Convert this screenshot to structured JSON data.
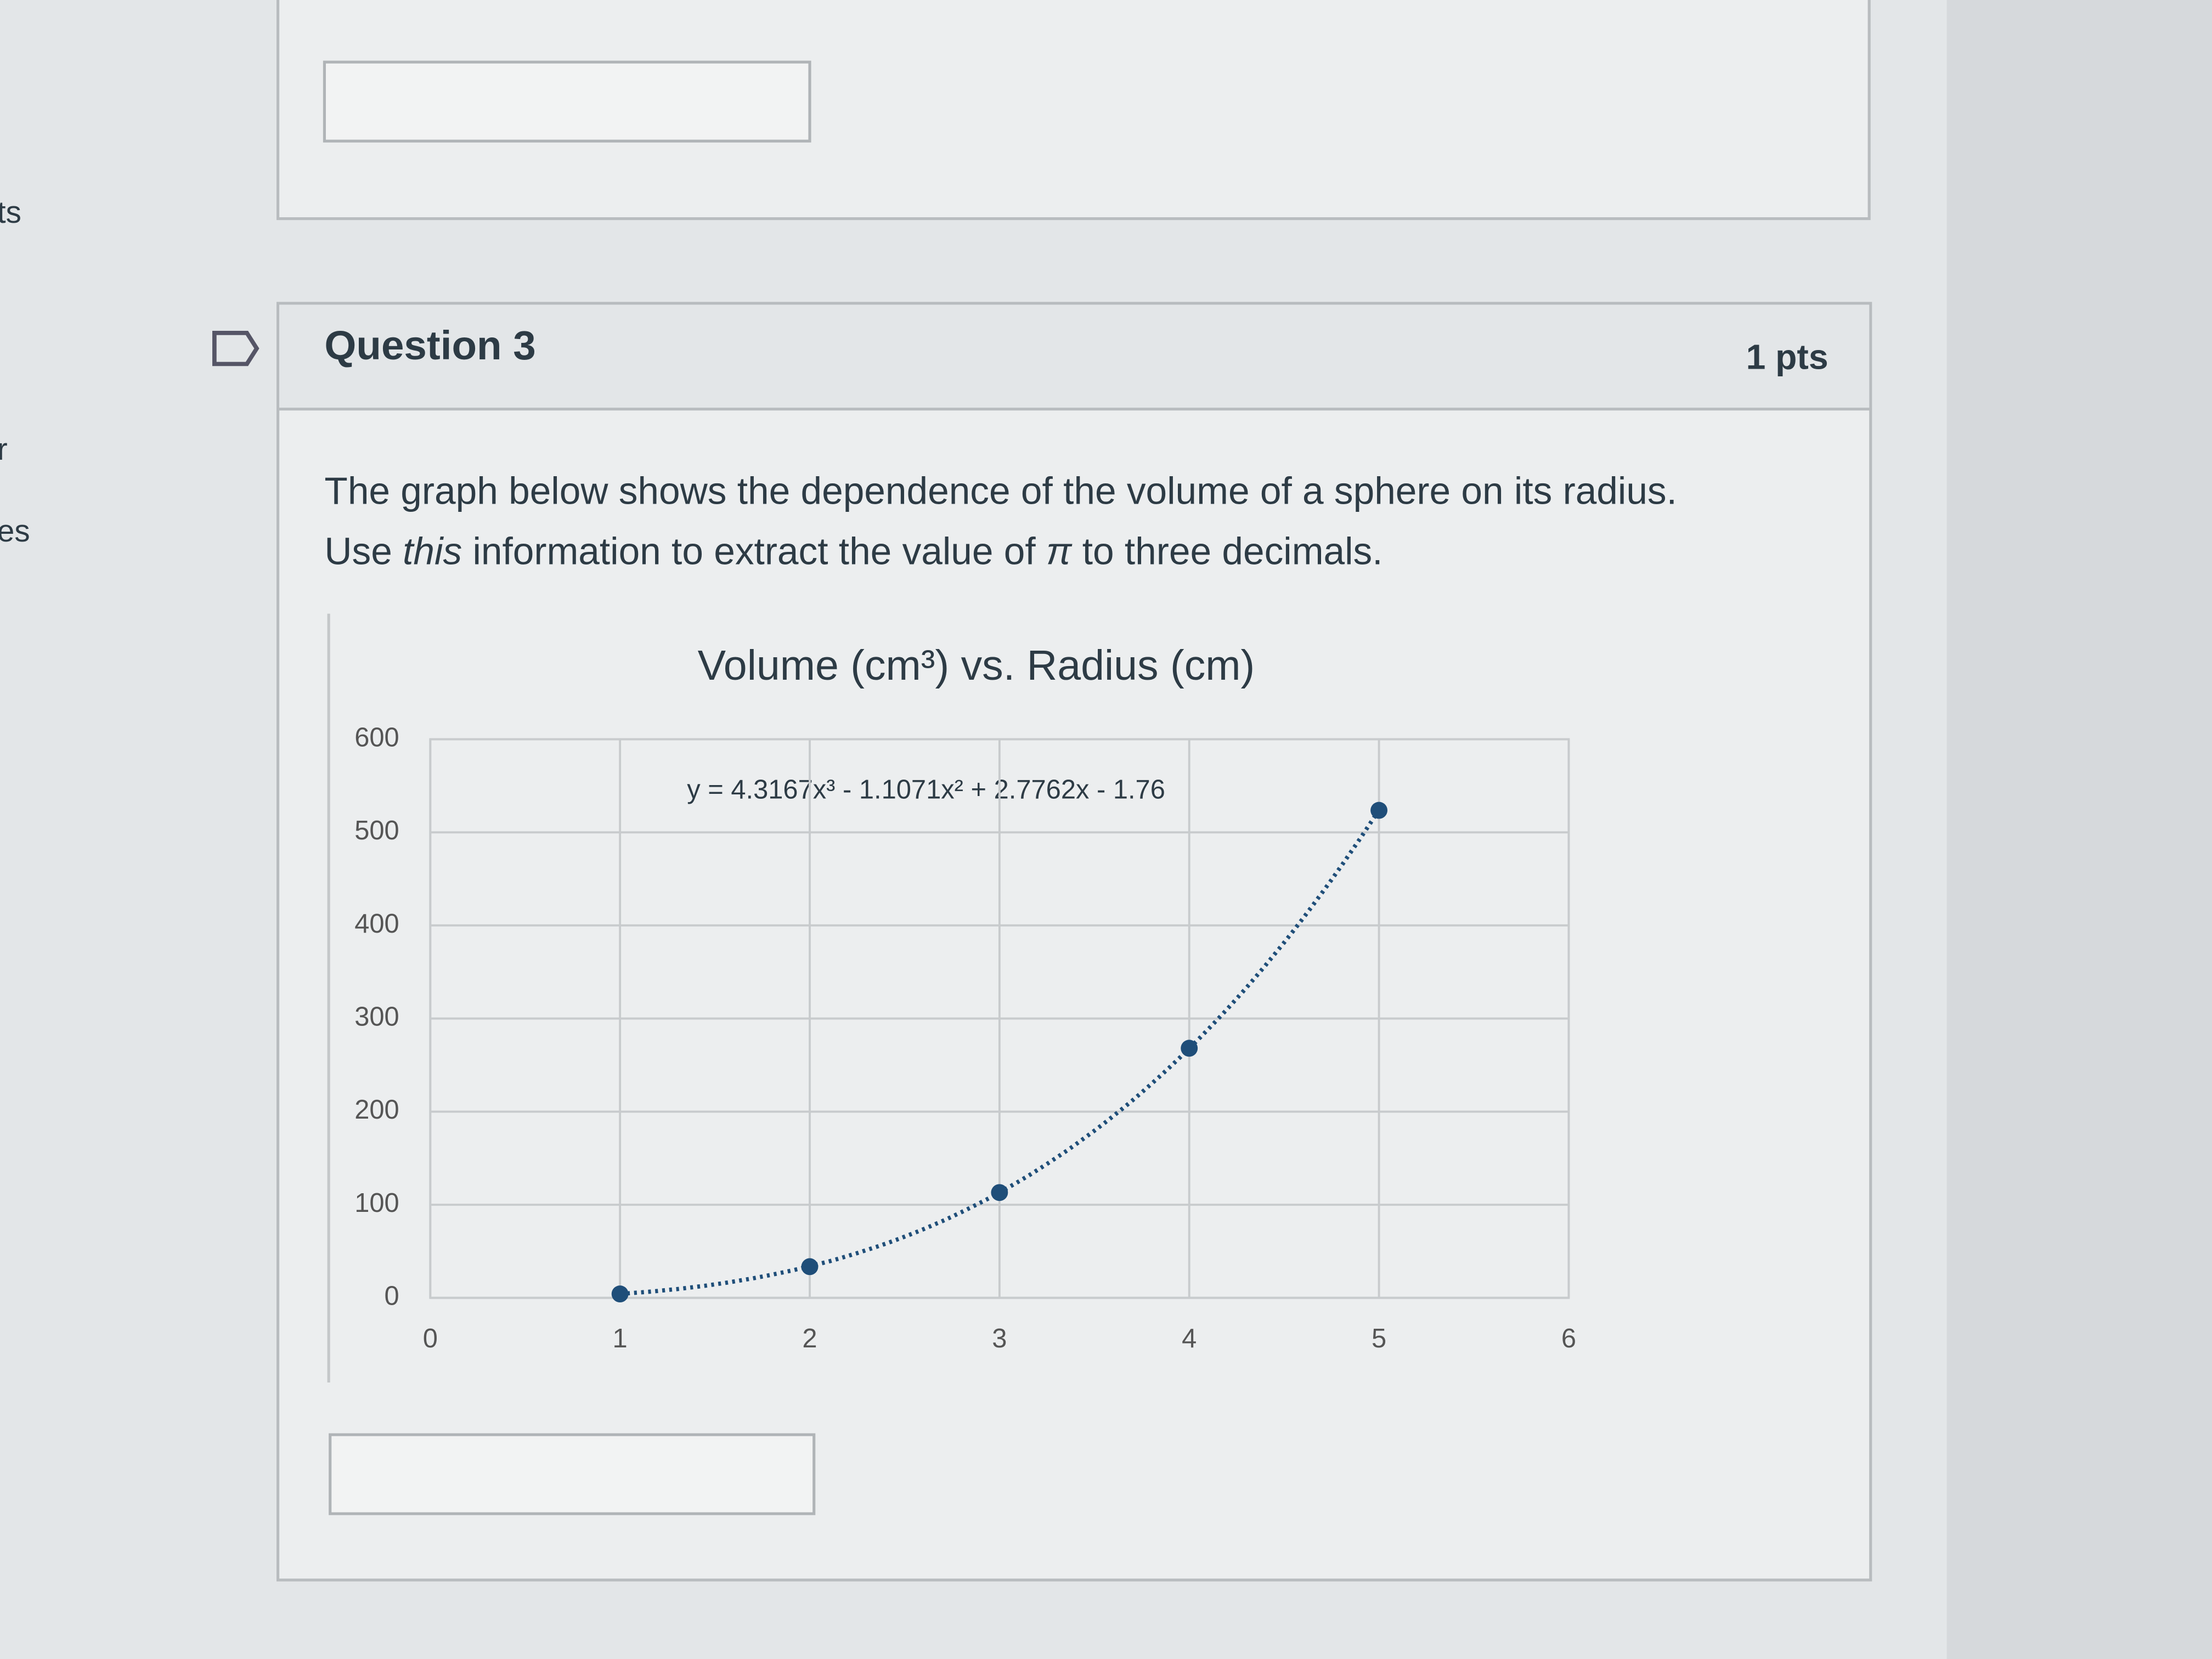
{
  "sidebar": [
    "ts",
    "r",
    "es"
  ],
  "question": {
    "title": "Question 3",
    "points": "1 pts",
    "line1": "The graph below shows the dependence of the volume of a sphere on its radius.",
    "line2": [
      "Use ",
      "this",
      " information to extract the value of ",
      "π",
      " to three decimals."
    ]
  },
  "chart_data": {
    "type": "scatter",
    "title": "Volume (cm³) vs. Radius (cm)",
    "x": [
      1,
      2,
      3,
      4,
      5
    ],
    "values": [
      4.2,
      33.5,
      113.1,
      268.1,
      523.6
    ],
    "color": "#1f4e79",
    "trendline": {
      "label": "y = 4.3167x³ - 1.1071x² + 2.7762x - 1.76",
      "coefficients": [
        4.3167,
        -1.1071,
        2.7762,
        -1.76
      ]
    },
    "xlim": [
      0,
      6
    ],
    "xticks": [
      0,
      1,
      2,
      3,
      4,
      5,
      6
    ],
    "ylim": [
      0,
      600
    ],
    "yticks": [
      0,
      100,
      200,
      300,
      400,
      500,
      600
    ],
    "grid": true
  }
}
